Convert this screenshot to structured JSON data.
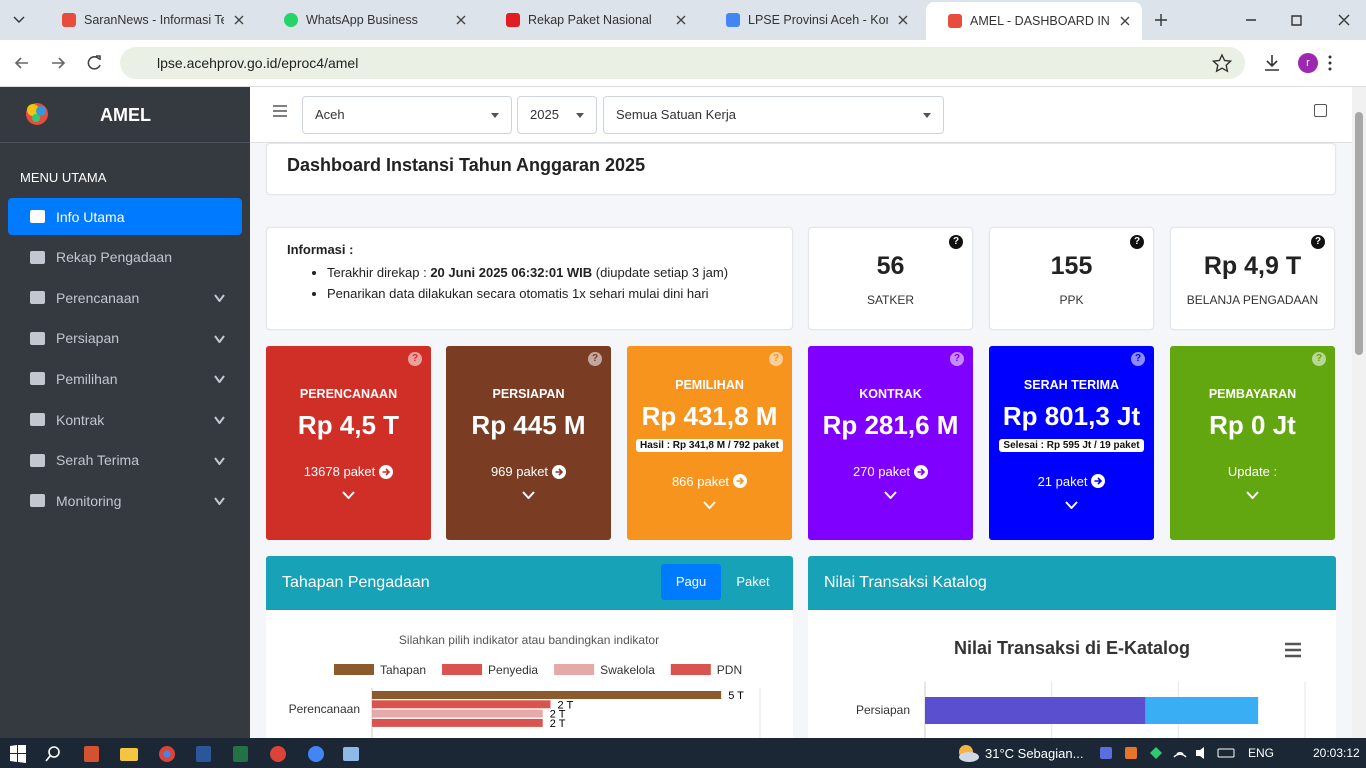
{
  "browser": {
    "tabs": [
      "SaranNews - Informasi Tepat",
      "WhatsApp Business",
      "Rekap Paket Nasional",
      "LPSE Provinsi Aceh - Kontak",
      "AMEL - DASHBOARD INSTAN"
    ],
    "url": "lpse.acehprov.go.id/eproc4/amel",
    "profile": "r"
  },
  "sidebar": {
    "brand": "AMEL",
    "section": "MENU UTAMA",
    "menu": [
      "Info Utama",
      "Rekap Pengadaan",
      "Perencanaan",
      "Persiapan",
      "Pemilihan",
      "Kontrak",
      "Serah Terima",
      "Monitoring"
    ]
  },
  "filters": [
    "Aceh",
    "2025",
    "Semua Satuan Kerja"
  ],
  "header": {
    "title": "Dashboard Instansi Tahun Anggaran 2025"
  },
  "help_mark": "?",
  "info": {
    "label": "Informasi :",
    "item1": {
      "before": "Terakhir direkap : ",
      "bold": "20 Juni 2025 06:32:01 WIB",
      "after": " (diupdate setiap 3 jam)"
    },
    "item2": "Penarikan data dilakukan secara otomatis 1x sehari mulai dini hari"
  },
  "stats": [
    {
      "value": "56",
      "label": "SATKER"
    },
    {
      "value": "155",
      "label": "PPK"
    },
    {
      "value": "Rp 4,9 T",
      "label": "BELANJA PENGADAAN"
    }
  ],
  "stages": [
    {
      "title": "PERENCANAAN",
      "value": "Rp 4,5 T",
      "link": "13678 paket",
      "color": "#d02f28"
    },
    {
      "title": "PERSIAPAN",
      "value": "Rp 445 M",
      "link": "969 paket",
      "color": "#7a3d24"
    },
    {
      "title": "PEMILIHAN",
      "value": "Rp 431,8 M",
      "note": "Hasil : Rp 341,8 M / 792 paket",
      "link": "866 paket",
      "color": "#f7941d"
    },
    {
      "title": "KONTRAK",
      "value": "Rp 281,6 M",
      "link": "270 paket",
      "color": "#8000ff"
    },
    {
      "title": "SERAH TERIMA",
      "value": "Rp 801,3 Jt",
      "note": "Selesai : Rp 595 Jt / 19 paket",
      "link": "21 paket",
      "color": "#0000ff"
    },
    {
      "title": "PEMBAYARAN",
      "value": "Rp 0 Jt",
      "link": "Update :",
      "color": "#62a70f"
    }
  ],
  "panels": {
    "tahapan": {
      "title": "Tahapan Pengadaan",
      "tabs": [
        "Pagu",
        "Paket"
      ]
    },
    "katalog": {
      "title": "Nilai Transaksi Katalog"
    }
  },
  "chart_data": [
    {
      "type": "bar",
      "subtitle": "Silahkan pilih indikator atau bandingkan indikator",
      "categories": [
        "Perencanaan"
      ],
      "series": [
        {
          "name": "Tahapan",
          "color": "#8c5a2b",
          "values": [
            4.5
          ],
          "value_labels": [
            "5 T"
          ]
        },
        {
          "name": "Penyedia",
          "color": "#d9534f",
          "values": [
            2.3
          ],
          "value_labels": [
            "2 T"
          ]
        },
        {
          "name": "Swakelola",
          "color": "#e5a9a9",
          "values": [
            2.2
          ],
          "value_labels": [
            "2 T"
          ]
        },
        {
          "name": "PDN",
          "color": "#d9534f",
          "values": [
            2.2
          ],
          "value_labels": [
            "2 T"
          ]
        }
      ],
      "xlim": [
        0,
        5
      ]
    },
    {
      "type": "stacked-bar",
      "title": "Nilai Transaksi di E-Katalog",
      "categories": [
        "Persiapan"
      ],
      "series": [
        {
          "color": "#5a4fcf",
          "values": [
            1.74
          ]
        },
        {
          "color": "#39aef5",
          "values": [
            0.89
          ]
        }
      ],
      "xlim": [
        0,
        3
      ]
    }
  ],
  "taskbar": {
    "weather": "31°C  Sebagian...",
    "lang": "ENG",
    "time": "20:03:12"
  }
}
